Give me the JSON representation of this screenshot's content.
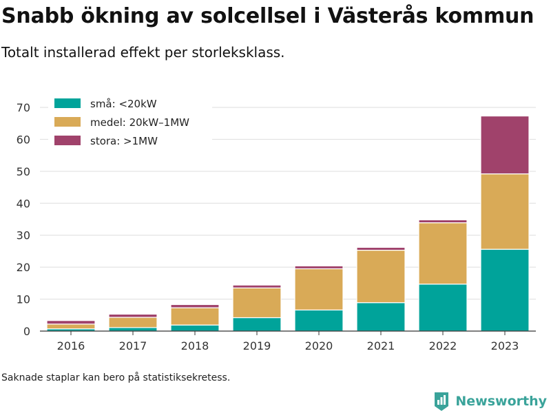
{
  "header": {
    "title": "Snabb ökning av solcellsel i Västerås kommun",
    "subtitle": "Totalt installerad effekt per storleksklass."
  },
  "footer": {
    "note": "Saknade staplar kan bero på statistiksekretess.",
    "brand": "Newsworthy"
  },
  "colors": {
    "small": "#00a39a",
    "medium": "#d9aa57",
    "large": "#a0426b",
    "gridline": "#dddddd",
    "axis": "#333333",
    "brand": "#3aa39a"
  },
  "chart_data": {
    "type": "bar",
    "stacked": true,
    "title": "Snabb ökning av solcellsel i Västerås kommun",
    "subtitle": "Totalt installerad effekt per storleksklass.",
    "xlabel": "",
    "ylabel": "",
    "categories": [
      "2016",
      "2017",
      "2018",
      "2019",
      "2020",
      "2021",
      "2022",
      "2023"
    ],
    "ylim": [
      0,
      70
    ],
    "yticks": [
      0,
      10,
      20,
      30,
      40,
      50,
      60,
      70
    ],
    "grid": true,
    "legend_position": "top-left",
    "series": [
      {
        "name": "små: <20kW",
        "color": "#00a39a",
        "values": [
          0.7,
          1.1,
          1.9,
          4.2,
          6.6,
          8.9,
          14.7,
          25.6
        ]
      },
      {
        "name": "medel: 20kW–1MW",
        "color": "#d9aa57",
        "values": [
          1.5,
          3.2,
          5.4,
          9.3,
          12.9,
          16.4,
          19.2,
          23.6
        ]
      },
      {
        "name": "stora: >1MW",
        "color": "#a0426b",
        "values": [
          1.1,
          1.0,
          1.0,
          0.9,
          0.9,
          0.9,
          0.9,
          18.1
        ]
      }
    ]
  }
}
